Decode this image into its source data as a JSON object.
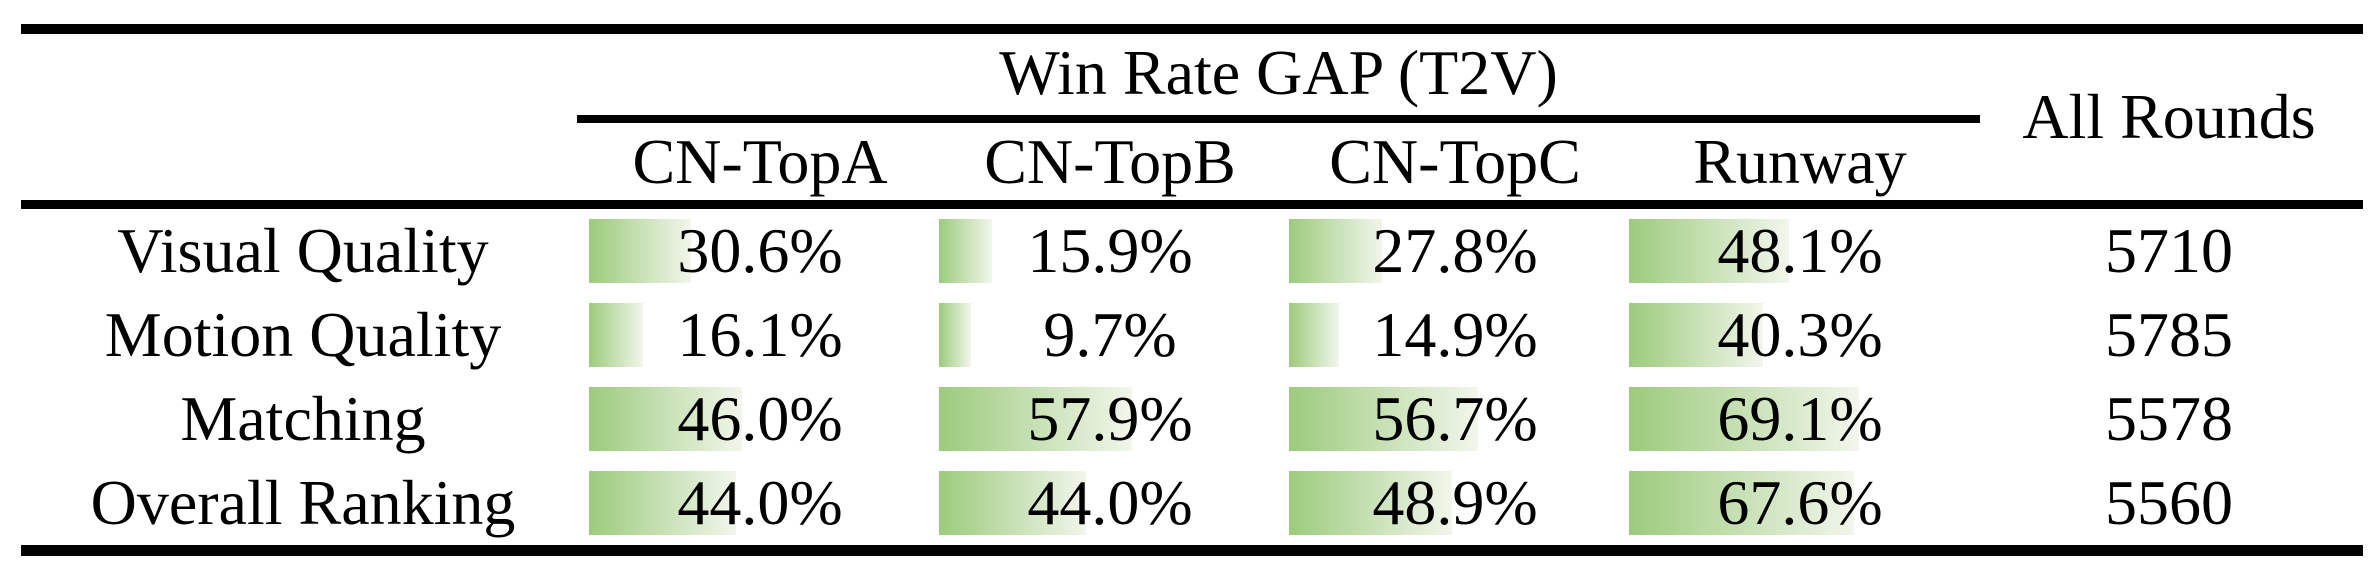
{
  "table": {
    "title": "Win Rate GAP (T2V)",
    "all_rounds_label": "All Rounds",
    "columns": [
      "CN-TopA",
      "CN-TopB",
      "CN-TopC",
      "Runway"
    ],
    "rows": [
      {
        "label": "Visual Quality",
        "values": [
          30.6,
          15.9,
          27.8,
          48.1
        ],
        "display": [
          "30.6%",
          "15.9%",
          "27.8%",
          "48.1%"
        ],
        "all_rounds": "5710"
      },
      {
        "label": "Motion Quality",
        "values": [
          16.1,
          9.7,
          14.9,
          40.3
        ],
        "display": [
          "16.1%",
          "9.7%",
          "14.9%",
          "40.3%"
        ],
        "all_rounds": "5785"
      },
      {
        "label": "Matching",
        "values": [
          46.0,
          57.9,
          56.7,
          69.1
        ],
        "display": [
          "46.0%",
          "57.9%",
          "56.7%",
          "69.1%"
        ],
        "all_rounds": "5578"
      },
      {
        "label": "Overall Ranking",
        "values": [
          44.0,
          44.0,
          48.9,
          67.6
        ],
        "display": [
          "44.0%",
          "44.0%",
          "48.9%",
          "67.6%"
        ],
        "all_rounds": "5560"
      }
    ]
  },
  "colors": {
    "bar_green": "#9ccb7d",
    "bar_fade": "#f2f6ec",
    "rule_black": "#000000"
  },
  "chart_data": {
    "type": "table",
    "title": "Win Rate GAP (T2V)",
    "categories": [
      "Visual Quality",
      "Motion Quality",
      "Matching",
      "Overall Ranking"
    ],
    "series": [
      {
        "name": "CN-TopA",
        "values": [
          30.6,
          16.1,
          46.0,
          44.0
        ]
      },
      {
        "name": "CN-TopB",
        "values": [
          15.9,
          9.7,
          57.9,
          44.0
        ]
      },
      {
        "name": "CN-TopC",
        "values": [
          27.8,
          14.9,
          56.7,
          48.9
        ]
      },
      {
        "name": "Runway",
        "values": [
          48.1,
          40.3,
          69.1,
          67.6
        ]
      }
    ],
    "extra_column": {
      "name": "All Rounds",
      "values": [
        5710,
        5785,
        5578,
        5560
      ]
    },
    "value_unit": "%",
    "layout_hints": "in-cell horizontal bars, length proportional to percent (100% = full cell), green fading to white, booktabs-style rules"
  }
}
